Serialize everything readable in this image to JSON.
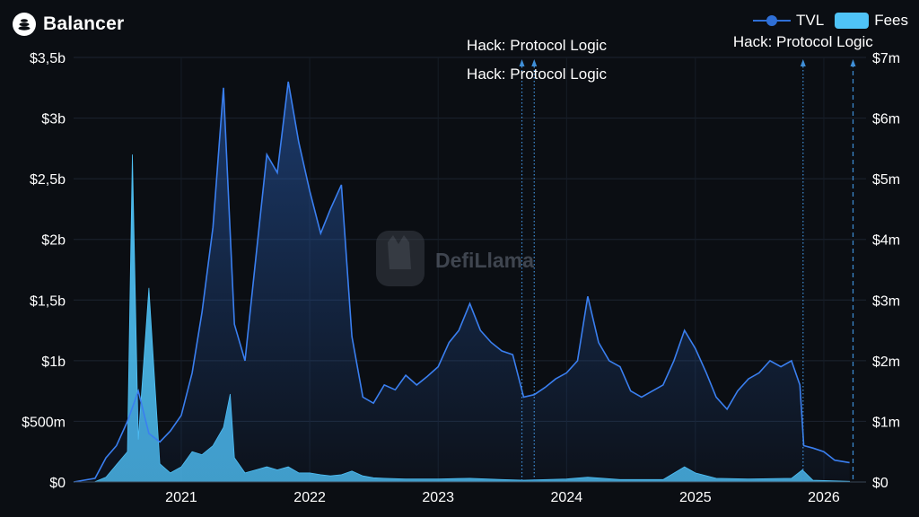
{
  "header": {
    "title": "Balancer",
    "logo_icon": "balancer-logo-icon"
  },
  "legend": [
    {
      "label": "TVL",
      "color": "#2f6fd6",
      "marker": "line-dot"
    },
    {
      "label": "Fees",
      "color": "#4fc3f7",
      "marker": "box"
    }
  ],
  "watermark": {
    "text": "DefiLlama"
  },
  "chart_data": {
    "type": "area",
    "x_axis": {
      "min": "2020-03-01",
      "max": "2026-05-01",
      "ticks": [
        "2021",
        "2022",
        "2023",
        "2024",
        "2025",
        "2026"
      ]
    },
    "y_left": {
      "unit": "USD",
      "min": 0,
      "max": 3500000000,
      "ticks": [
        "$0",
        "$500m",
        "$1b",
        "$1,5b",
        "$2b",
        "$2,5b",
        "$3b",
        "$3,5b"
      ]
    },
    "y_right": {
      "unit": "USD",
      "min": 0,
      "max": 7000000,
      "ticks": [
        "$0",
        "$1m",
        "$2m",
        "$3m",
        "$4m",
        "$5m",
        "$6m",
        "$7m"
      ]
    },
    "grid": true,
    "legend_position": "top-right",
    "series": [
      {
        "name": "TVL",
        "axis": "left",
        "color": "#2f6fd6",
        "points": [
          [
            "2020-03-01",
            0
          ],
          [
            "2020-05-01",
            30000000
          ],
          [
            "2020-06-01",
            200000000
          ],
          [
            "2020-07-01",
            300000000
          ],
          [
            "2020-08-01",
            500000000
          ],
          [
            "2020-09-01",
            750000000
          ],
          [
            "2020-10-01",
            400000000
          ],
          [
            "2020-11-01",
            330000000
          ],
          [
            "2020-12-01",
            420000000
          ],
          [
            "2021-01-01",
            550000000
          ],
          [
            "2021-02-01",
            900000000
          ],
          [
            "2021-03-01",
            1400000000
          ],
          [
            "2021-04-01",
            2100000000
          ],
          [
            "2021-05-01",
            3250000000
          ],
          [
            "2021-06-01",
            1300000000
          ],
          [
            "2021-07-01",
            1000000000
          ],
          [
            "2021-08-01",
            1850000000
          ],
          [
            "2021-09-01",
            2700000000
          ],
          [
            "2021-10-01",
            2550000000
          ],
          [
            "2021-11-01",
            3300000000
          ],
          [
            "2021-12-01",
            2800000000
          ],
          [
            "2022-01-01",
            2400000000
          ],
          [
            "2022-02-01",
            2050000000
          ],
          [
            "2022-03-01",
            2250000000
          ],
          [
            "2022-04-01",
            2450000000
          ],
          [
            "2022-05-01",
            1200000000
          ],
          [
            "2022-06-01",
            700000000
          ],
          [
            "2022-07-01",
            650000000
          ],
          [
            "2022-08-01",
            800000000
          ],
          [
            "2022-09-01",
            760000000
          ],
          [
            "2022-10-01",
            880000000
          ],
          [
            "2022-11-01",
            800000000
          ],
          [
            "2022-12-01",
            870000000
          ],
          [
            "2023-01-01",
            950000000
          ],
          [
            "2023-02-01",
            1150000000
          ],
          [
            "2023-03-01",
            1250000000
          ],
          [
            "2023-04-01",
            1470000000
          ],
          [
            "2023-05-01",
            1250000000
          ],
          [
            "2023-06-01",
            1150000000
          ],
          [
            "2023-07-01",
            1080000000
          ],
          [
            "2023-08-01",
            1050000000
          ],
          [
            "2023-09-01",
            700000000
          ],
          [
            "2023-10-01",
            720000000
          ],
          [
            "2023-11-01",
            780000000
          ],
          [
            "2023-12-01",
            850000000
          ],
          [
            "2024-01-01",
            900000000
          ],
          [
            "2024-02-01",
            1000000000
          ],
          [
            "2024-03-01",
            1530000000
          ],
          [
            "2024-04-01",
            1150000000
          ],
          [
            "2024-05-01",
            1000000000
          ],
          [
            "2024-06-01",
            950000000
          ],
          [
            "2024-07-01",
            750000000
          ],
          [
            "2024-08-01",
            700000000
          ],
          [
            "2024-09-01",
            750000000
          ],
          [
            "2024-10-01",
            800000000
          ],
          [
            "2024-11-01",
            1000000000
          ],
          [
            "2024-12-01",
            1250000000
          ],
          [
            "2025-01-01",
            1100000000
          ],
          [
            "2025-02-01",
            900000000
          ],
          [
            "2025-03-01",
            700000000
          ],
          [
            "2025-04-01",
            600000000
          ],
          [
            "2025-05-01",
            750000000
          ],
          [
            "2025-06-01",
            850000000
          ],
          [
            "2025-07-01",
            900000000
          ],
          [
            "2025-08-01",
            1000000000
          ],
          [
            "2025-09-01",
            950000000
          ],
          [
            "2025-10-01",
            1000000000
          ],
          [
            "2025-10-25",
            800000000
          ],
          [
            "2025-11-05",
            300000000
          ],
          [
            "2025-12-01",
            280000000
          ],
          [
            "2026-01-01",
            250000000
          ],
          [
            "2026-02-01",
            180000000
          ],
          [
            "2026-03-15",
            160000000
          ]
        ]
      },
      {
        "name": "Fees",
        "axis": "right",
        "color": "#4fc3f7",
        "points": [
          [
            "2020-05-01",
            5000
          ],
          [
            "2020-06-01",
            80000
          ],
          [
            "2020-08-01",
            500000
          ],
          [
            "2020-08-15",
            5400000
          ],
          [
            "2020-09-01",
            700000
          ],
          [
            "2020-10-01",
            3200000
          ],
          [
            "2020-11-01",
            300000
          ],
          [
            "2020-12-01",
            150000
          ],
          [
            "2021-01-01",
            250000
          ],
          [
            "2021-02-01",
            500000
          ],
          [
            "2021-03-01",
            450000
          ],
          [
            "2021-04-01",
            600000
          ],
          [
            "2021-05-01",
            900000
          ],
          [
            "2021-05-20",
            1450000
          ],
          [
            "2021-06-01",
            400000
          ],
          [
            "2021-07-01",
            150000
          ],
          [
            "2021-08-01",
            200000
          ],
          [
            "2021-09-01",
            250000
          ],
          [
            "2021-10-01",
            200000
          ],
          [
            "2021-11-01",
            250000
          ],
          [
            "2021-12-01",
            150000
          ],
          [
            "2022-01-01",
            150000
          ],
          [
            "2022-02-01",
            120000
          ],
          [
            "2022-03-01",
            100000
          ],
          [
            "2022-04-01",
            120000
          ],
          [
            "2022-05-01",
            180000
          ],
          [
            "2022-06-01",
            100000
          ],
          [
            "2022-07-01",
            70000
          ],
          [
            "2022-08-01",
            60000
          ],
          [
            "2022-10-01",
            50000
          ],
          [
            "2023-01-01",
            50000
          ],
          [
            "2023-04-01",
            60000
          ],
          [
            "2023-07-01",
            40000
          ],
          [
            "2023-09-01",
            30000
          ],
          [
            "2024-01-01",
            50000
          ],
          [
            "2024-03-01",
            80000
          ],
          [
            "2024-06-01",
            40000
          ],
          [
            "2024-10-01",
            40000
          ],
          [
            "2024-12-01",
            250000
          ],
          [
            "2025-01-01",
            150000
          ],
          [
            "2025-03-01",
            60000
          ],
          [
            "2025-06-01",
            50000
          ],
          [
            "2025-10-01",
            60000
          ],
          [
            "2025-11-01",
            200000
          ],
          [
            "2025-12-01",
            30000
          ],
          [
            "2026-03-15",
            10000
          ]
        ]
      }
    ],
    "annotations": [
      {
        "date": "2023-08-27",
        "label": "Hack: Protocol Logic",
        "style": "dotted"
      },
      {
        "date": "2023-10-01",
        "label": "Hack: Protocol Logic",
        "style": "dotted"
      },
      {
        "date": "2025-11-03",
        "label": "Hack: Protocol Logic",
        "style": "dotted"
      },
      {
        "date": "2026-03-25",
        "label": "",
        "style": "dashed"
      }
    ]
  }
}
